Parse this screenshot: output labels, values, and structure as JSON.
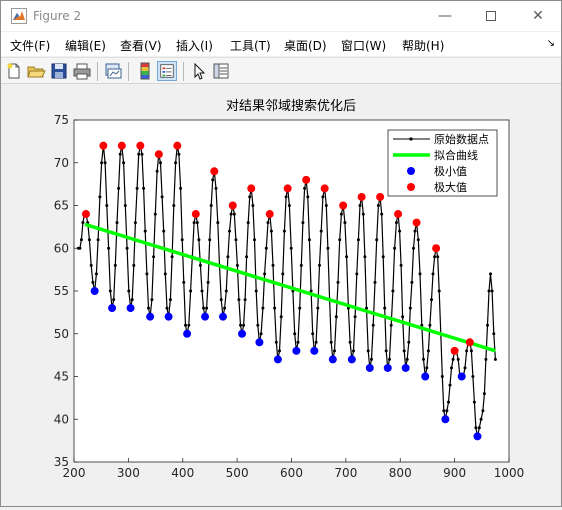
{
  "window": {
    "title": "Figure 2"
  },
  "menu": {
    "items": [
      {
        "label": "文件(F)",
        "name": "menu-file"
      },
      {
        "label": "编辑(E)",
        "name": "menu-edit"
      },
      {
        "label": "查看(V)",
        "name": "menu-view"
      },
      {
        "label": "插入(I)",
        "name": "menu-insert"
      },
      {
        "label": "工具(T)",
        "name": "menu-tools"
      },
      {
        "label": "桌面(D)",
        "name": "menu-desktop"
      },
      {
        "label": "窗口(W)",
        "name": "menu-window"
      },
      {
        "label": "帮助(H)",
        "name": "menu-help"
      }
    ]
  },
  "toolbar": {
    "buttons": [
      "new-figure-icon",
      "open-file-icon",
      "save-icon",
      "print-icon",
      "link-plot-icon",
      "colorbar-icon",
      "legend-icon",
      "pointer-icon",
      "property-inspector-icon"
    ]
  },
  "chart_data": {
    "type": "line",
    "title": "对结果邻域搜索优化后",
    "xlim": [
      200,
      1000
    ],
    "ylim": [
      35,
      75
    ],
    "xticks": [
      200,
      300,
      400,
      500,
      600,
      700,
      800,
      900,
      1000
    ],
    "yticks": [
      35,
      40,
      45,
      50,
      55,
      60,
      65,
      70,
      75
    ],
    "grid": false,
    "legend_position": "top-right",
    "legend": [
      {
        "label": "原始数据点",
        "style": "black line with dots"
      },
      {
        "label": "拟合曲线",
        "style": "green line"
      },
      {
        "label": "极小值",
        "style": "blue marker"
      },
      {
        "label": "极大值",
        "style": "red marker"
      }
    ],
    "colors": {
      "raw": "#000000",
      "fit": "#00ff00",
      "min": "#0000ff",
      "max": "#ff0000"
    },
    "fit_line": {
      "x": [
        220,
        975
      ],
      "y": [
        62.8,
        48.0
      ]
    },
    "minima": {
      "x": [
        238,
        270,
        304,
        340,
        374,
        408,
        441,
        474,
        509,
        541,
        575,
        609,
        642,
        676,
        711,
        744,
        777,
        810,
        846,
        883,
        913,
        942
      ],
      "y": [
        55,
        53,
        53,
        52,
        52,
        50,
        52,
        52,
        50,
        49,
        47,
        48,
        48,
        47,
        47,
        46,
        46,
        46,
        45,
        40,
        45,
        38
      ]
    },
    "maxima": {
      "x": [
        222,
        254,
        288,
        322,
        356,
        390,
        424,
        458,
        492,
        526,
        560,
        593,
        627,
        661,
        695,
        729,
        763,
        796,
        830,
        866,
        900,
        928
      ],
      "y": [
        64,
        72,
        72,
        72,
        71,
        72,
        64,
        69,
        65,
        67,
        64,
        67,
        68,
        67,
        65,
        66,
        66,
        64,
        63,
        60,
        48,
        49
      ]
    }
  }
}
